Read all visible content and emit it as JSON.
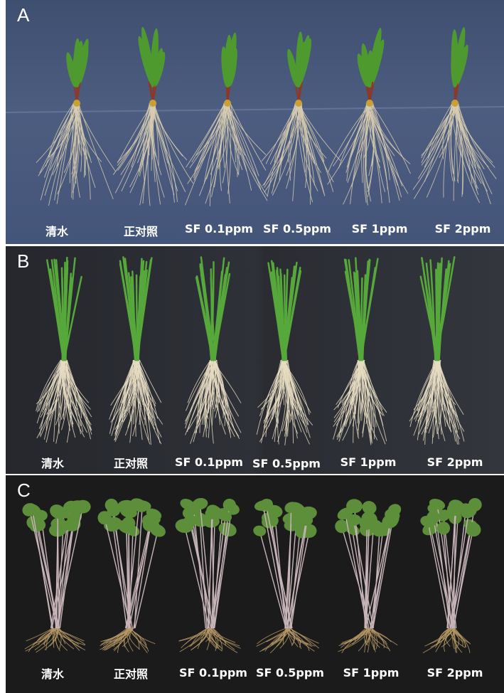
{
  "panels": [
    {
      "letter": "A",
      "labels": [
        "清水",
        "正对照",
        "SF 0.1ppm",
        "SF 0.5ppm",
        "SF 1ppm",
        "SF 2ppm"
      ]
    },
    {
      "letter": "B",
      "labels": [
        "清水",
        "正对照",
        "SF 0.1ppm",
        "SF 0.5ppm",
        "SF 1ppm",
        "SF 2ppm"
      ]
    },
    {
      "letter": "C",
      "labels": [
        "清水",
        "正对照",
        "SF 0.1ppm",
        "SF 0.5ppm",
        "SF 1ppm",
        "SF 2ppm"
      ]
    }
  ],
  "colors": {
    "panel_a_bg": "#46567a",
    "panel_b_bg": "#2c2e34",
    "panel_c_bg": "#1b1b1b",
    "leaf": "#4f9a2e",
    "root": "#d9cdb0"
  }
}
